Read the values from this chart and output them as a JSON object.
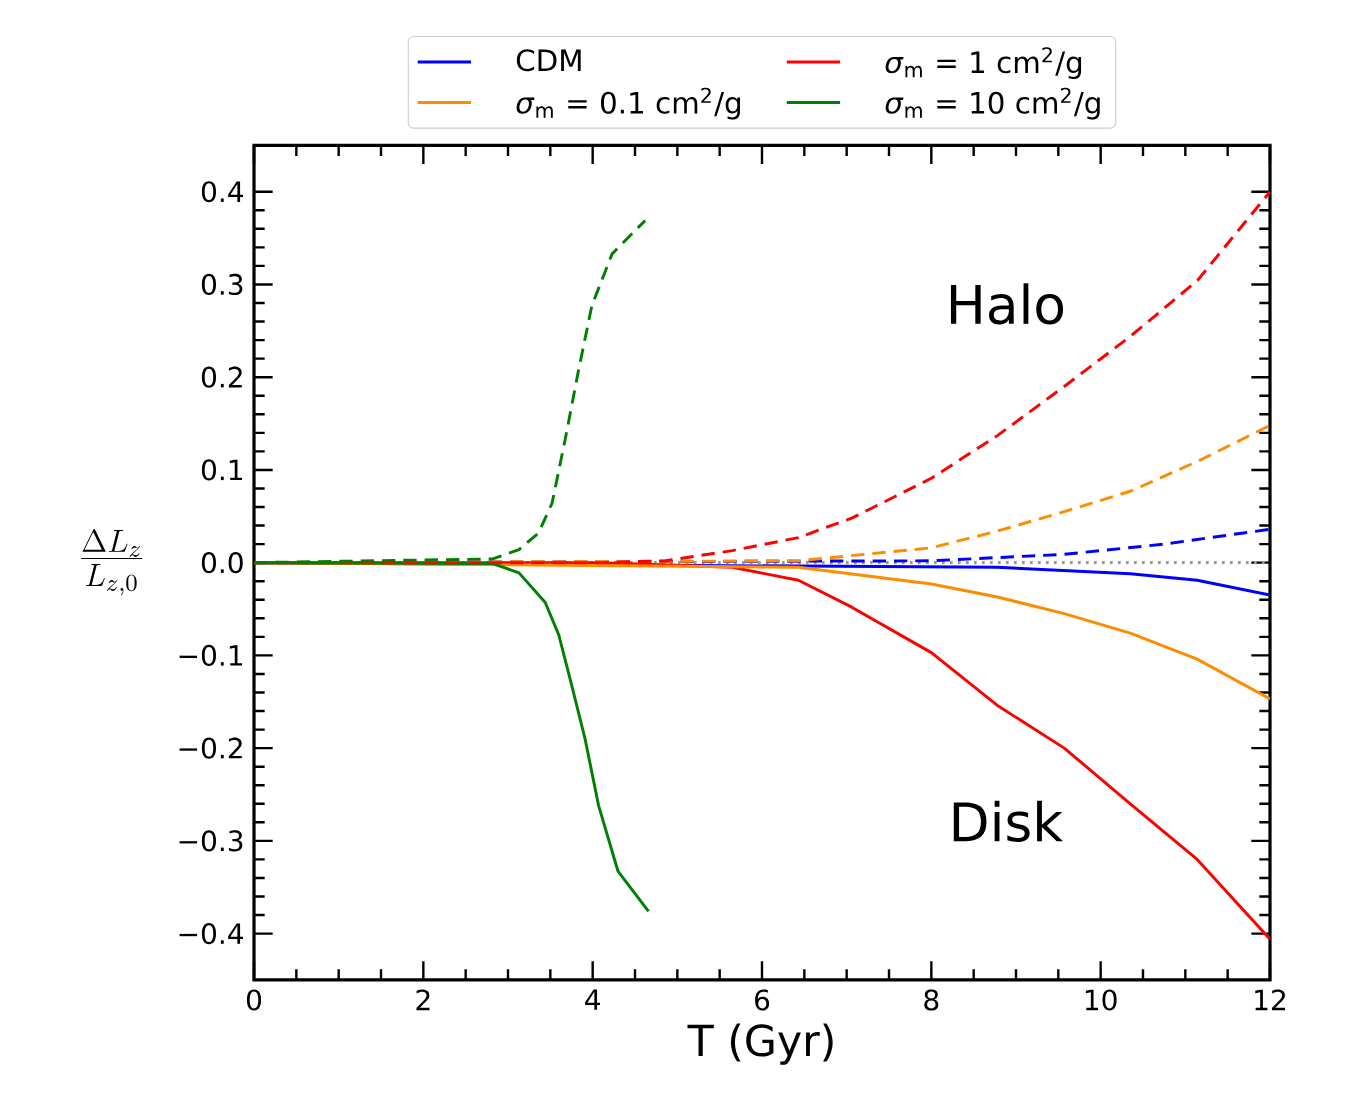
{
  "chart_data": {
    "type": "line",
    "xlabel": "T (Gyr)",
    "ylabel": "\\frac{\\Delta L_z}{L_{z,0}}",
    "xlim": [
      0,
      12
    ],
    "xticks": [
      0,
      2,
      4,
      6,
      8,
      10,
      12
    ],
    "ylim": [
      -0.45,
      0.45
    ],
    "yticks": [
      {
        "value": -0.4,
        "label": "−0.4"
      },
      {
        "value": -0.3,
        "label": "−0.3"
      },
      {
        "value": -0.2,
        "label": "−0.2"
      },
      {
        "value": -0.1,
        "label": "−0.1"
      },
      {
        "value": 0,
        "label": "0.0"
      },
      0.1,
      0.2,
      0.3,
      0.4
    ],
    "grid": false,
    "legend": "top",
    "marker": "none",
    "ref_lines": [
      {
        "axis": "y",
        "value": 0,
        "color": "#999999",
        "line_style": "dotted"
      }
    ],
    "annotations": [
      "Halo",
      "Disk"
    ],
    "series": [
      {
        "name": "CDM",
        "color": "#0000ff",
        "line_style": "solid",
        "x": [
          0,
          8.78,
          10.35,
          11.14,
          12
        ],
        "values": [
          0,
          -0.005,
          -0.012,
          -0.019,
          -0.035
        ]
      },
      {
        "name": "*σ*$_{m}$ = 1 cm$^{2}$/g",
        "color": "#ff0000",
        "line_style": "solid",
        "x": [
          0,
          4.08,
          5.65,
          6.43,
          7.06,
          8,
          8.78,
          9.57,
          10.35,
          11.14,
          12
        ],
        "values": [
          0,
          0,
          -0.005,
          -0.019,
          -0.048,
          -0.097,
          -0.154,
          -0.2,
          -0.26,
          -0.32,
          -0.406
        ]
      },
      {
        "name": "*σ*$_{m}$ = 0.1 cm$^{2}$/g",
        "color": "#ff8c00",
        "line_style": "solid",
        "x": [
          0,
          6.43,
          8,
          8.78,
          9.57,
          10.35,
          11.14,
          12
        ],
        "values": [
          0,
          -0.005,
          -0.023,
          -0.037,
          -0.055,
          -0.076,
          -0.104,
          -0.147
        ]
      },
      {
        "name": "*σ*$_{m}$ = 10 cm$^{2}$/g",
        "color": "#008000",
        "line_style": "solid",
        "x": [
          0,
          2.82,
          3.13,
          3.44,
          3.6,
          3.76,
          3.91,
          4.07,
          4.3,
          4.66
        ],
        "values": [
          0,
          -0.001,
          -0.011,
          -0.043,
          -0.078,
          -0.135,
          -0.19,
          -0.262,
          -0.333,
          -0.376
        ]
      },
      {
        "color": "#0000ff",
        "line_style": "dashed",
        "x": [
          0,
          8,
          9.57,
          10.75,
          12
        ],
        "values": [
          0,
          0.002,
          0.009,
          0.02,
          0.036
        ]
      },
      {
        "color": "#ff8c00",
        "line_style": "dashed",
        "x": [
          0,
          6.43,
          8,
          8.78,
          9.57,
          10.35,
          11.14,
          12
        ],
        "values": [
          0,
          0.002,
          0.016,
          0.034,
          0.055,
          0.077,
          0.109,
          0.148
        ]
      },
      {
        "color": "#ff0000",
        "line_style": "dashed",
        "x": [
          0,
          4.08,
          4.86,
          5.65,
          6.43,
          7.06,
          8,
          8.78,
          9.57,
          10.35,
          11.14,
          12
        ],
        "values": [
          0,
          0,
          0.002,
          0.013,
          0.027,
          0.048,
          0.091,
          0.137,
          0.19,
          0.244,
          0.304,
          0.4
        ]
      },
      {
        "color": "#008000",
        "line_style": "dashed",
        "x": [
          0,
          2.82,
          3.13,
          3.36,
          3.52,
          3.68,
          3.83,
          3.99,
          4.23,
          4.62
        ],
        "values": [
          0,
          0.004,
          0.014,
          0.032,
          0.064,
          0.135,
          0.206,
          0.277,
          0.333,
          0.369
        ]
      }
    ]
  }
}
